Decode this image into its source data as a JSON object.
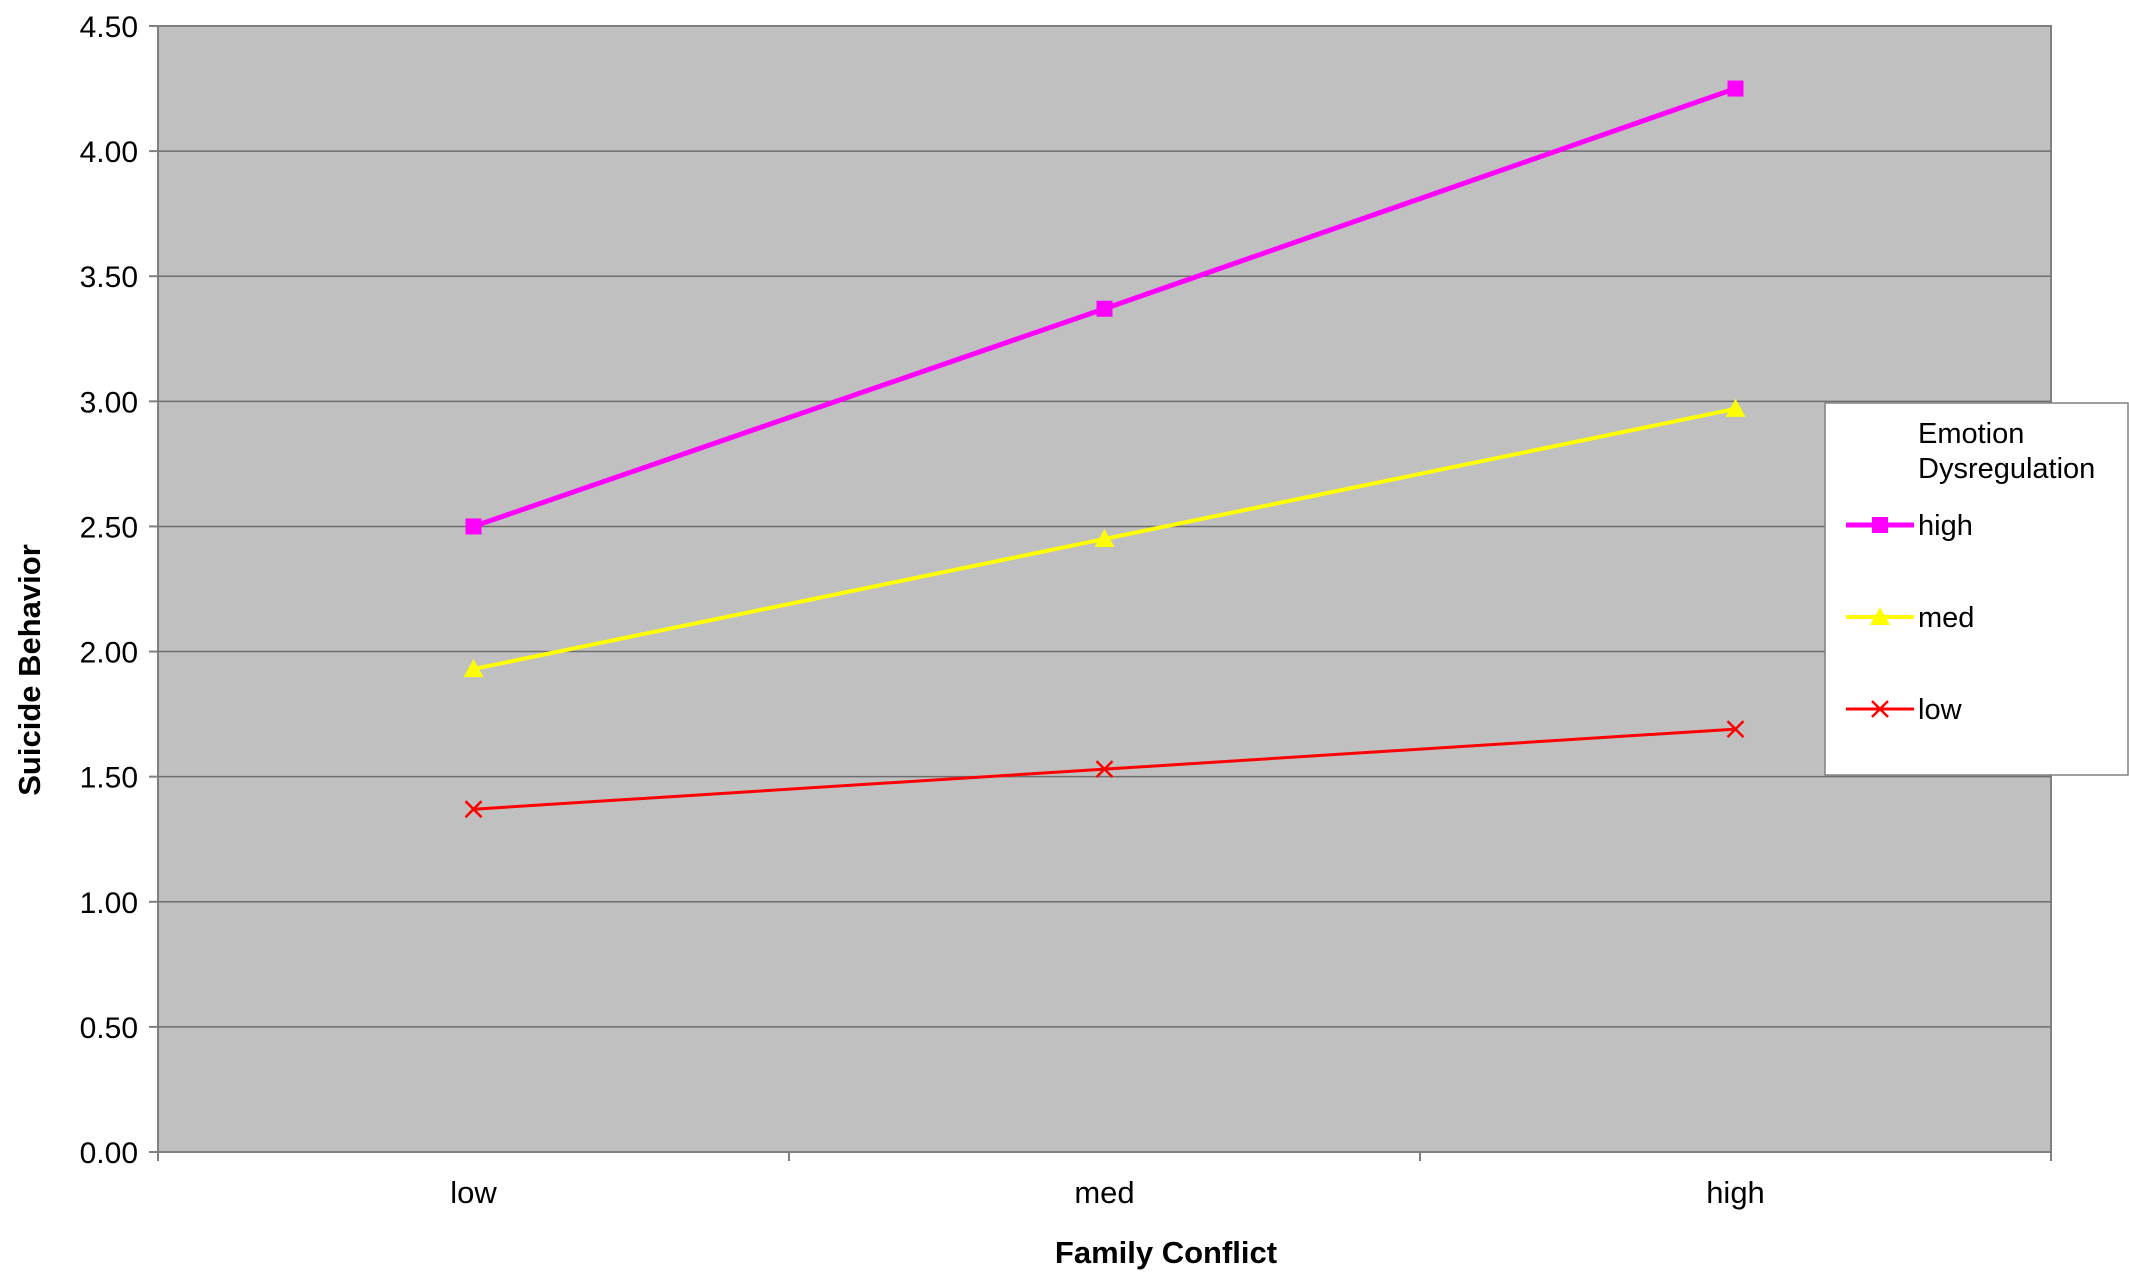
{
  "chart_data": {
    "type": "line",
    "title": "",
    "xlabel": "Family Conflict",
    "ylabel": "Suicide Behavior",
    "categories": [
      "low",
      "med",
      "high"
    ],
    "ylim": [
      0,
      4.5
    ],
    "yticks": [
      0.0,
      0.5,
      1.0,
      1.5,
      2.0,
      2.5,
      3.0,
      3.5,
      4.0,
      4.5
    ],
    "ytick_labels": [
      "0.00",
      "0.50",
      "1.00",
      "1.50",
      "2.00",
      "2.50",
      "3.00",
      "3.50",
      "4.00",
      "4.50"
    ],
    "grid": true,
    "plot_background": "#c0c0c0",
    "legend": {
      "title_line1": "Emotion",
      "title_line2": "Dysregulation",
      "placement": "right"
    },
    "series": [
      {
        "name": "high",
        "values": [
          2.5,
          3.37,
          4.25
        ],
        "color": "#ff00ff",
        "marker": "square"
      },
      {
        "name": "med",
        "values": [
          1.93,
          2.45,
          2.97
        ],
        "color": "#ffff00",
        "marker": "triangle"
      },
      {
        "name": "low",
        "values": [
          1.37,
          1.53,
          1.69
        ],
        "color": "#ff0000",
        "marker": "x"
      }
    ]
  }
}
